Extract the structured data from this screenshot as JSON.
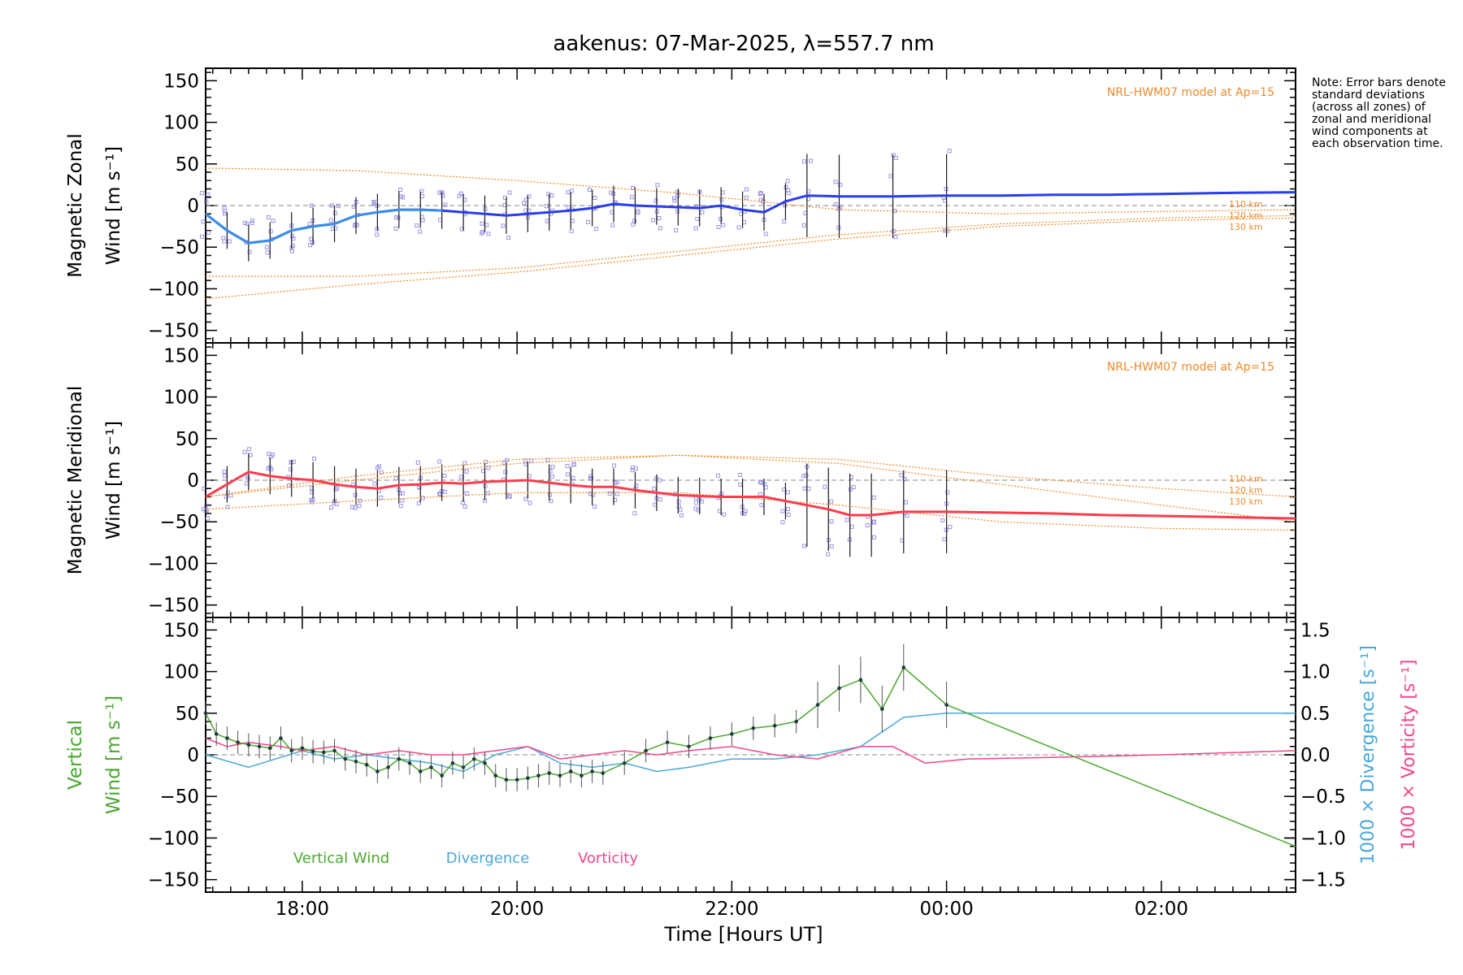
{
  "chart_data": {
    "type": "line",
    "title": "aakenus: 07-Mar-2025, λ=557.7 nm",
    "xlabel": "Time [Hours UT]",
    "x_range_hours": [
      17.1,
      27.25
    ],
    "x_ticks": [
      {
        "hour": 18,
        "label": "18:00"
      },
      {
        "hour": 20,
        "label": "20:00"
      },
      {
        "hour": 22,
        "label": "22:00"
      },
      {
        "hour": 24,
        "label": "00:00"
      },
      {
        "hour": 26,
        "label": "02:00"
      }
    ],
    "y_ticks": [
      -150,
      -100,
      -50,
      0,
      50,
      100,
      150
    ],
    "note": "Note: Error bars denote standard deviations (across all zones) of zonal and meridional wind components at each observation time.",
    "model_label": "NRL-HWM07 model at Ap=15",
    "model_altitudes": [
      "110 km",
      "120 km",
      "130 km"
    ],
    "colors": {
      "zonal": "#2a3cf0",
      "zonal_recent": "#3b8ee8",
      "meridional": "#ff3b4e",
      "model": "#f08a28",
      "vertical": "#4aa82e",
      "divergence": "#4aa8d8",
      "vorticity": "#f0478c",
      "scatter": "#9b95e6",
      "dashed": "#888888"
    },
    "panels": [
      {
        "name": "zonal",
        "ylabel_line1": "Magnetic Zonal",
        "ylabel_line2": "Wind [m s⁻¹]",
        "ylim": [
          -165,
          165
        ],
        "series": [
          {
            "name": "Magnetic Zonal Wind",
            "x": [
              17.1,
              17.3,
              17.5,
              17.7,
              17.9,
              18.1,
              18.3,
              18.5,
              18.7,
              18.9,
              19.1,
              19.3,
              19.5,
              19.7,
              19.9,
              20.1,
              20.3,
              20.5,
              20.7,
              20.9,
              21.1,
              21.3,
              21.5,
              21.7,
              21.9,
              22.1,
              22.3,
              22.5,
              22.7,
              23.0,
              23.5,
              24.0,
              24.5,
              25.0,
              25.5,
              26.0,
              26.5,
              27.25
            ],
            "y": [
              -10,
              -30,
              -45,
              -42,
              -30,
              -25,
              -22,
              -12,
              -8,
              -5,
              -5,
              -6,
              -8,
              -10,
              -12,
              -10,
              -8,
              -6,
              -3,
              2,
              0,
              -1,
              -2,
              -3,
              0,
              -5,
              -8,
              5,
              12,
              11,
              11,
              12,
              12,
              13,
              13,
              14,
              15,
              16
            ]
          }
        ],
        "model_curves": [
          {
            "label": "110 km",
            "x": [
              17.1,
              18.5,
              20.0,
              21.5,
              23.0,
              24.5,
              26.0,
              27.25
            ],
            "y": [
              45,
              42,
              30,
              15,
              -5,
              -10,
              -7,
              -5
            ]
          },
          {
            "label": "120 km",
            "x": [
              17.1,
              18.5,
              20.0,
              21.5,
              23.0,
              24.5,
              26.0,
              27.25
            ],
            "y": [
              -85,
              -85,
              -75,
              -55,
              -35,
              -22,
              -15,
              -12
            ]
          },
          {
            "label": "130 km",
            "x": [
              17.1,
              18.5,
              20.0,
              21.5,
              23.0,
              24.5,
              26.0,
              27.25
            ],
            "y": [
              -112,
              -95,
              -80,
              -60,
              -40,
              -25,
              -18,
              -15
            ]
          }
        ]
      },
      {
        "name": "meridional",
        "ylabel_line1": "Magnetic Meridional",
        "ylabel_line2": "Wind [m s⁻¹]",
        "ylim": [
          -165,
          165
        ],
        "series": [
          {
            "name": "Magnetic Meridional Wind",
            "x": [
              17.1,
              17.3,
              17.5,
              17.7,
              17.9,
              18.1,
              18.3,
              18.5,
              18.7,
              18.9,
              19.1,
              19.3,
              19.5,
              19.7,
              19.9,
              20.1,
              20.3,
              20.5,
              20.7,
              20.9,
              21.1,
              21.3,
              21.5,
              21.7,
              21.9,
              22.1,
              22.3,
              22.5,
              22.7,
              22.9,
              23.1,
              23.3,
              23.6,
              24.0,
              24.5,
              25.0,
              25.5,
              26.0,
              26.5,
              27.25
            ],
            "y": [
              -20,
              -5,
              10,
              5,
              2,
              0,
              -5,
              -8,
              -10,
              -6,
              -5,
              -3,
              -4,
              -2,
              -1,
              0,
              -3,
              -6,
              -8,
              -8,
              -12,
              -15,
              -18,
              -19,
              -20,
              -20,
              -20,
              -25,
              -30,
              -35,
              -42,
              -42,
              -38,
              -38,
              -39,
              -40,
              -42,
              -43,
              -44,
              -46
            ]
          }
        ],
        "model_curves": [
          {
            "label": "110 km",
            "x": [
              17.1,
              18.5,
              20.0,
              21.5,
              23.0,
              24.5,
              26.0,
              27.25
            ],
            "y": [
              -20,
              5,
              25,
              30,
              20,
              -5,
              -30,
              -50
            ]
          },
          {
            "label": "120 km",
            "x": [
              17.1,
              18.5,
              20.0,
              21.5,
              23.0,
              24.5,
              26.0,
              27.25
            ],
            "y": [
              -20,
              0,
              20,
              30,
              25,
              5,
              -10,
              -20
            ]
          },
          {
            "label": "130 km",
            "x": [
              17.1,
              18.5,
              20.0,
              21.5,
              23.0,
              24.5,
              26.0,
              27.25
            ],
            "y": [
              -35,
              -25,
              -15,
              -15,
              -30,
              -50,
              -58,
              -60
            ]
          }
        ]
      },
      {
        "name": "vertical",
        "ylabel_line1": "Vertical",
        "ylabel_line2": "Wind [m s⁻¹]",
        "ylim": [
          -165,
          165
        ],
        "right_axis_ticks": [
          "1.5",
          "1.0",
          "0.5",
          "0.0",
          "−0.5",
          "−1.0",
          "−1.5"
        ],
        "right_label_divergence": "1000 × Divergence [s⁻¹]",
        "right_label_vorticity": "1000 × Vorticity [s⁻¹]",
        "legend": [
          "Vertical Wind",
          "Divergence",
          "Vorticity"
        ],
        "series": [
          {
            "name": "Vertical Wind",
            "x": [
              17.1,
              17.2,
              17.3,
              17.4,
              17.5,
              17.6,
              17.7,
              17.8,
              17.9,
              18.0,
              18.1,
              18.2,
              18.3,
              18.4,
              18.5,
              18.6,
              18.7,
              18.8,
              18.9,
              19.0,
              19.1,
              19.2,
              19.3,
              19.4,
              19.5,
              19.6,
              19.7,
              19.8,
              19.9,
              20.0,
              20.1,
              20.2,
              20.3,
              20.4,
              20.5,
              20.6,
              20.7,
              20.8,
              21.0,
              21.2,
              21.4,
              21.6,
              21.8,
              22.0,
              22.2,
              22.4,
              22.6,
              22.8,
              23.0,
              23.2,
              23.4,
              23.6,
              24.0,
              27.25
            ],
            "y": [
              50,
              25,
              20,
              15,
              12,
              10,
              8,
              20,
              5,
              8,
              4,
              3,
              5,
              -5,
              -8,
              -12,
              -20,
              -15,
              -5,
              -10,
              -20,
              -15,
              -25,
              -10,
              -15,
              -5,
              -10,
              -25,
              -30,
              -30,
              -28,
              -25,
              -22,
              -25,
              -20,
              -25,
              -20,
              -22,
              -10,
              5,
              15,
              10,
              20,
              25,
              32,
              35,
              40,
              60,
              80,
              90,
              55,
              105,
              60,
              -110
            ]
          },
          {
            "name": "Divergence",
            "x": [
              17.1,
              17.5,
              18.0,
              18.3,
              18.6,
              18.9,
              19.2,
              19.5,
              19.8,
              20.1,
              20.4,
              20.7,
              21.0,
              21.3,
              21.6,
              22.0,
              22.4,
              22.8,
              23.2,
              23.6,
              24.0,
              25.0,
              26.0,
              27.25
            ],
            "y_axis2": [
              0.0,
              -0.15,
              0.05,
              -0.05,
              0.0,
              -0.05,
              -0.1,
              -0.2,
              0.0,
              0.1,
              -0.1,
              -0.15,
              -0.1,
              -0.2,
              -0.15,
              -0.05,
              -0.05,
              0.0,
              0.1,
              0.45,
              0.5,
              0.5,
              0.5,
              0.5
            ]
          },
          {
            "name": "Vorticity",
            "x": [
              17.1,
              17.3,
              17.5,
              17.8,
              18.0,
              18.3,
              18.6,
              18.9,
              19.2,
              19.5,
              19.8,
              20.1,
              20.4,
              20.7,
              21.0,
              21.3,
              21.6,
              22.0,
              22.4,
              22.8,
              23.2,
              23.5,
              23.8,
              24.2,
              25.0,
              26.0,
              27.25
            ],
            "y_axis2": [
              0.2,
              0.1,
              0.15,
              0.1,
              0.05,
              0.1,
              0.0,
              0.05,
              0.0,
              0.0,
              0.05,
              0.1,
              -0.05,
              0.0,
              0.05,
              0.0,
              0.05,
              0.1,
              0.0,
              -0.05,
              0.1,
              0.1,
              -0.1,
              -0.05,
              -0.03,
              0.0,
              0.05
            ]
          }
        ]
      }
    ]
  }
}
